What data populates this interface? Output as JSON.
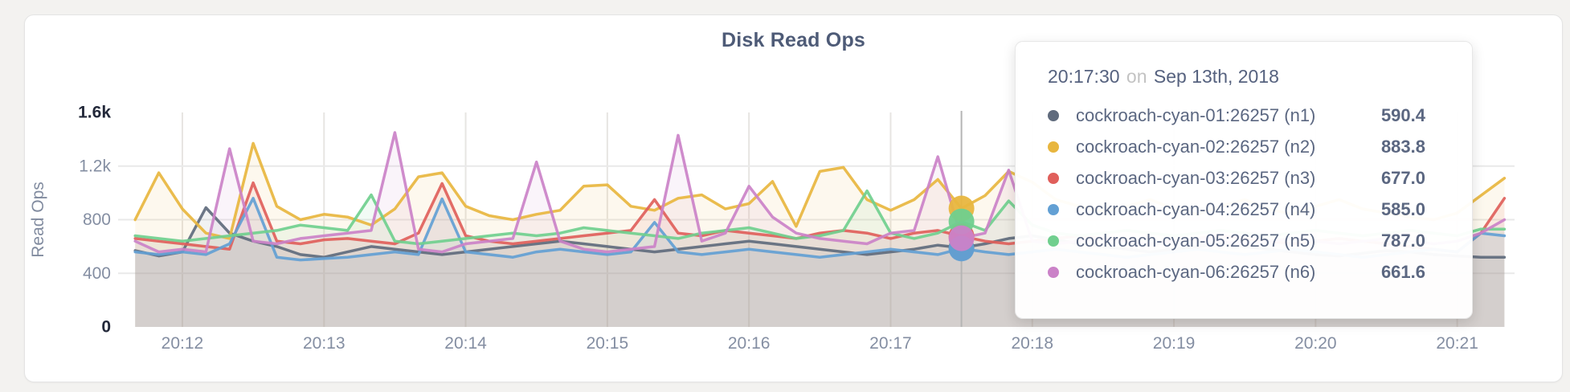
{
  "chart": {
    "title": "Disk Read Ops",
    "y_axis_label": "Read Ops"
  },
  "tooltip": {
    "time": "20:17:30",
    "conjunction": "on",
    "date": "Sep 13th, 2018",
    "rows": [
      {
        "name": "cockroach-cyan-01:26257 (n1)",
        "value_label": "590.4",
        "color": "#606b7d"
      },
      {
        "name": "cockroach-cyan-02:26257 (n2)",
        "value_label": "883.8",
        "color": "#e8b63f"
      },
      {
        "name": "cockroach-cyan-03:26257 (n3)",
        "value_label": "677.0",
        "color": "#e05f5b"
      },
      {
        "name": "cockroach-cyan-04:26257 (n4)",
        "value_label": "585.0",
        "color": "#63a0d4"
      },
      {
        "name": "cockroach-cyan-05:26257 (n5)",
        "value_label": "787.0",
        "color": "#70cf8e"
      },
      {
        "name": "cockroach-cyan-06:26257 (n6)",
        "value_label": "661.6",
        "color": "#cb82c8"
      }
    ]
  },
  "chart_data": {
    "type": "line",
    "title": "Disk Read Ops",
    "xlabel": "",
    "ylabel": "Read Ops",
    "ylim": [
      0,
      1600
    ],
    "x_start_time": "20:11:40",
    "x_step_seconds": 10,
    "x_ticks": [
      "20:12",
      "20:13",
      "20:14",
      "20:15",
      "20:16",
      "20:17",
      "20:18",
      "20:19",
      "20:20",
      "20:21"
    ],
    "y_ticks": [
      {
        "label": "1.6k",
        "value": 1600,
        "emphasis": true
      },
      {
        "label": "1.2k",
        "value": 1200,
        "emphasis": false
      },
      {
        "label": "800",
        "value": 800,
        "emphasis": false
      },
      {
        "label": "400",
        "value": 400,
        "emphasis": false
      },
      {
        "label": "0",
        "value": 0,
        "emphasis": true
      }
    ],
    "grid": true,
    "legend_position": "tooltip",
    "hover": {
      "index": 35,
      "time": "20:17:30"
    },
    "series": [
      {
        "name": "cockroach-cyan-01:26257 (n1)",
        "color": "#606b7d",
        "values": [
          570,
          530,
          560,
          890,
          700,
          640,
          600,
          540,
          520,
          560,
          600,
          580,
          560,
          540,
          560,
          580,
          600,
          620,
          640,
          620,
          600,
          580,
          560,
          580,
          600,
          620,
          640,
          620,
          600,
          580,
          560,
          540,
          560,
          580,
          610,
          590.4,
          620,
          660,
          680,
          650,
          620,
          600,
          580,
          560,
          580,
          600,
          620,
          600,
          580,
          560,
          540,
          530,
          550,
          570,
          560,
          540,
          530,
          520,
          520
        ]
      },
      {
        "name": "cockroach-cyan-02:26257 (n2)",
        "color": "#e8b63f",
        "values": [
          800,
          1150,
          880,
          700,
          660,
          1370,
          900,
          800,
          840,
          820,
          760,
          880,
          1120,
          1150,
          900,
          830,
          800,
          840,
          870,
          1050,
          1060,
          900,
          870,
          960,
          985,
          880,
          920,
          1085,
          750,
          1160,
          1190,
          950,
          870,
          950,
          1100,
          883.8,
          980,
          1160,
          1080,
          950,
          900,
          860,
          900,
          950,
          880,
          840,
          900,
          950,
          880,
          840,
          900,
          950,
          880,
          850,
          820,
          800,
          850,
          980,
          1110
        ]
      },
      {
        "name": "cockroach-cyan-03:26257 (n3)",
        "color": "#e05f5b",
        "values": [
          660,
          640,
          620,
          600,
          580,
          1075,
          640,
          620,
          650,
          660,
          640,
          620,
          700,
          1070,
          680,
          640,
          620,
          640,
          660,
          680,
          700,
          720,
          950,
          700,
          680,
          720,
          700,
          680,
          660,
          700,
          720,
          700,
          660,
          700,
          720,
          677,
          640,
          620,
          640,
          660,
          680,
          660,
          640,
          620,
          640,
          660,
          680,
          660,
          640,
          620,
          640,
          660,
          640,
          620,
          600,
          580,
          560,
          700,
          960
        ]
      },
      {
        "name": "cockroach-cyan-04:26257 (n4)",
        "color": "#63a0d4",
        "values": [
          560,
          540,
          560,
          540,
          620,
          960,
          520,
          500,
          510,
          520,
          540,
          560,
          540,
          955,
          560,
          540,
          520,
          560,
          580,
          560,
          540,
          560,
          780,
          560,
          540,
          560,
          580,
          560,
          540,
          520,
          540,
          560,
          580,
          560,
          540,
          585,
          560,
          540,
          560,
          580,
          560,
          540,
          520,
          540,
          560,
          580,
          560,
          540,
          560,
          580,
          560,
          540,
          520,
          540,
          560,
          580,
          560,
          700,
          680
        ]
      },
      {
        "name": "cockroach-cyan-05:26257 (n5)",
        "color": "#70cf8e",
        "values": [
          680,
          660,
          640,
          660,
          680,
          700,
          720,
          760,
          740,
          720,
          985,
          640,
          620,
          640,
          660,
          680,
          700,
          680,
          700,
          740,
          720,
          700,
          680,
          660,
          700,
          720,
          740,
          700,
          660,
          680,
          720,
          1015,
          700,
          660,
          700,
          787,
          720,
          940,
          760,
          700,
          680,
          700,
          720,
          700,
          680,
          700,
          720,
          700,
          680,
          700,
          720,
          700,
          680,
          700,
          720,
          700,
          680,
          730,
          730
        ]
      },
      {
        "name": "cockroach-cyan-06:26257 (n6)",
        "color": "#cb82c8",
        "values": [
          640,
          560,
          580,
          560,
          1330,
          640,
          620,
          660,
          680,
          700,
          720,
          1450,
          580,
          560,
          620,
          640,
          660,
          1230,
          640,
          580,
          560,
          580,
          600,
          1430,
          640,
          700,
          1050,
          820,
          700,
          660,
          640,
          620,
          700,
          720,
          1270,
          661.6,
          700,
          1170,
          640,
          620,
          640,
          660,
          640,
          620,
          640,
          660,
          640,
          620,
          640,
          660,
          640,
          620,
          640,
          660,
          640,
          620,
          640,
          700,
          800
        ]
      }
    ]
  }
}
